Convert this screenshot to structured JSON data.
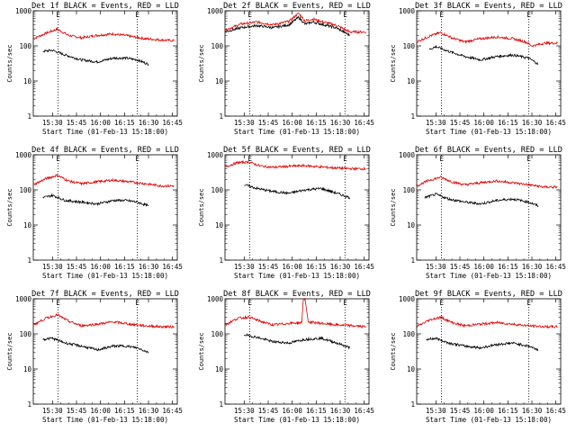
{
  "chart_data": [
    {
      "type": "line",
      "title": "Det 1f BLACK = Events, RED = LLD",
      "xlabel": "Start Time (01-Feb-13 15:18:00)",
      "ylabel": "Counts/sec",
      "xticks": [
        "15:30",
        "15:45",
        "16:00",
        "16:15",
        "16:30",
        "16:45"
      ],
      "yticks": [
        "1",
        "10",
        "100",
        "1000"
      ],
      "ylim": [
        1,
        1000
      ],
      "xlim_minutes": [
        0,
        90
      ],
      "markers": [
        {
          "label": "E",
          "minute": 15.5
        },
        {
          "label": "E",
          "minute": 65
        }
      ],
      "series": [
        {
          "name": "LLD",
          "color": "#dd0000",
          "x": [
            0,
            8,
            15,
            22,
            30,
            40,
            50,
            60,
            70,
            78,
            88
          ],
          "y": [
            160,
            230,
            300,
            200,
            170,
            200,
            220,
            190,
            160,
            150,
            140
          ]
        },
        {
          "name": "Events",
          "color": "#000000",
          "x": [
            6,
            12,
            20,
            30,
            40,
            50,
            58,
            65,
            72
          ],
          "y": [
            70,
            75,
            55,
            40,
            35,
            45,
            45,
            40,
            30
          ]
        }
      ]
    },
    {
      "type": "line",
      "title": "Det 2f BLACK = Events, RED = LLD",
      "xlabel": "Start Time (01-Feb-13 15:18:00)",
      "ylabel": "Counts/sec",
      "xticks": [
        "15:30",
        "15:45",
        "16:00",
        "16:15",
        "16:30",
        "16:45"
      ],
      "yticks": [
        "1",
        "10",
        "100",
        "1000"
      ],
      "ylim": [
        1,
        1000
      ],
      "xlim_minutes": [
        0,
        90
      ],
      "markers": [
        {
          "label": "E",
          "minute": 15.5
        },
        {
          "label": "E",
          "minute": 75
        }
      ],
      "series": [
        {
          "name": "LLD",
          "color": "#dd0000",
          "x": [
            0,
            10,
            20,
            30,
            40,
            46,
            50,
            55,
            60,
            70,
            78,
            88
          ],
          "y": [
            280,
            420,
            480,
            400,
            500,
            850,
            520,
            580,
            500,
            380,
            250,
            250
          ]
        },
        {
          "name": "Events",
          "color": "#000000",
          "x": [
            0,
            10,
            20,
            30,
            40,
            46,
            50,
            55,
            60,
            70,
            78
          ],
          "y": [
            250,
            330,
            380,
            330,
            400,
            650,
            420,
            480,
            420,
            320,
            200
          ]
        }
      ]
    },
    {
      "type": "line",
      "title": "Det 3f BLACK = Events, RED = LLD",
      "xlabel": "Start Time (01-Feb-13 15:18:00)",
      "ylabel": "Counts/sec",
      "xticks": [
        "15:30",
        "15:45",
        "16:00",
        "16:15",
        "16:30",
        "16:45"
      ],
      "yticks": [
        "1",
        "10",
        "100",
        "1000"
      ],
      "ylim": [
        1,
        1000
      ],
      "xlim_minutes": [
        0,
        90
      ],
      "markers": [
        {
          "label": "E",
          "minute": 15.5
        },
        {
          "label": "E",
          "minute": 70
        }
      ],
      "series": [
        {
          "name": "LLD",
          "color": "#dd0000",
          "x": [
            0,
            8,
            15,
            22,
            30,
            40,
            50,
            60,
            68,
            72,
            80,
            88
          ],
          "y": [
            130,
            190,
            240,
            170,
            130,
            160,
            180,
            160,
            130,
            100,
            120,
            120
          ]
        },
        {
          "name": "Events",
          "color": "#000000",
          "x": [
            8,
            12,
            20,
            30,
            40,
            50,
            60,
            70,
            76
          ],
          "y": [
            80,
            95,
            70,
            50,
            40,
            50,
            55,
            45,
            30
          ]
        }
      ]
    },
    {
      "type": "line",
      "title": "Det 4f BLACK = Events, RED = LLD",
      "xlabel": "Start Time (01-Feb-13 15:18:00)",
      "ylabel": "Counts/sec",
      "xticks": [
        "15:30",
        "15:45",
        "16:00",
        "16:15",
        "16:30",
        "16:45"
      ],
      "yticks": [
        "1",
        "10",
        "100",
        "1000"
      ],
      "ylim": [
        1,
        1000
      ],
      "xlim_minutes": [
        0,
        90
      ],
      "markers": [
        {
          "label": "E",
          "minute": 15.5
        },
        {
          "label": "E",
          "minute": 65
        }
      ],
      "series": [
        {
          "name": "LLD",
          "color": "#dd0000",
          "x": [
            0,
            8,
            15,
            22,
            30,
            40,
            50,
            60,
            70,
            80,
            88
          ],
          "y": [
            140,
            210,
            260,
            180,
            150,
            170,
            190,
            170,
            150,
            130,
            130
          ]
        },
        {
          "name": "Events",
          "color": "#000000",
          "x": [
            6,
            12,
            20,
            30,
            40,
            50,
            58,
            65,
            72
          ],
          "y": [
            60,
            70,
            50,
            45,
            40,
            50,
            50,
            45,
            35
          ]
        }
      ]
    },
    {
      "type": "line",
      "title": "Det 5f BLACK = Events, RED = LLD",
      "xlabel": "Start Time (01-Feb-13 15:18:00)",
      "ylabel": "Counts/sec",
      "xticks": [
        "15:30",
        "15:45",
        "16:00",
        "16:15",
        "16:30",
        "16:45"
      ],
      "yticks": [
        "1",
        "10",
        "100",
        "1000"
      ],
      "ylim": [
        1,
        1000
      ],
      "xlim_minutes": [
        0,
        90
      ],
      "markers": [
        {
          "label": "E",
          "minute": 15.5
        },
        {
          "label": "E",
          "minute": 75
        }
      ],
      "series": [
        {
          "name": "LLD",
          "color": "#dd0000",
          "x": [
            0,
            8,
            15,
            22,
            30,
            40,
            50,
            60,
            70,
            80,
            88
          ],
          "y": [
            450,
            600,
            620,
            480,
            440,
            470,
            490,
            450,
            420,
            400,
            400
          ]
        },
        {
          "name": "Events",
          "color": "#000000",
          "x": [
            12,
            20,
            30,
            40,
            50,
            60,
            70,
            78
          ],
          "y": [
            140,
            110,
            90,
            80,
            100,
            110,
            80,
            60
          ]
        }
      ]
    },
    {
      "type": "line",
      "title": "Det 6f BLACK = Events, RED = LLD",
      "xlabel": "Start Time (01-Feb-13 15:18:00)",
      "ylabel": "Counts/sec",
      "xticks": [
        "15:30",
        "15:45",
        "16:00",
        "16:15",
        "16:30",
        "16:45"
      ],
      "yticks": [
        "1",
        "10",
        "100",
        "1000"
      ],
      "ylim": [
        1,
        1000
      ],
      "xlim_minutes": [
        0,
        90
      ],
      "markers": [
        {
          "label": "E",
          "minute": 15.5
        },
        {
          "label": "E",
          "minute": 70
        }
      ],
      "series": [
        {
          "name": "LLD",
          "color": "#dd0000",
          "x": [
            0,
            8,
            15,
            22,
            30,
            40,
            50,
            60,
            70,
            80,
            88
          ],
          "y": [
            130,
            190,
            230,
            170,
            140,
            160,
            180,
            160,
            140,
            120,
            120
          ]
        },
        {
          "name": "Events",
          "color": "#000000",
          "x": [
            5,
            12,
            20,
            30,
            40,
            50,
            60,
            70,
            76
          ],
          "y": [
            60,
            75,
            55,
            45,
            40,
            50,
            55,
            45,
            35
          ]
        }
      ]
    },
    {
      "type": "line",
      "title": "Det 7f BLACK = Events, RED = LLD",
      "xlabel": "Start Time (01-Feb-13 15:18:00)",
      "ylabel": "Counts/sec",
      "xticks": [
        "15:30",
        "15:45",
        "16:00",
        "16:15",
        "16:30",
        "16:45"
      ],
      "yticks": [
        "1",
        "10",
        "100",
        "1000"
      ],
      "ylim": [
        1,
        1000
      ],
      "xlim_minutes": [
        0,
        90
      ],
      "markers": [
        {
          "label": "E",
          "minute": 15.5
        },
        {
          "label": "E",
          "minute": 65
        }
      ],
      "series": [
        {
          "name": "LLD",
          "color": "#dd0000",
          "x": [
            0,
            8,
            15,
            22,
            30,
            40,
            50,
            60,
            70,
            80,
            88
          ],
          "y": [
            180,
            280,
            350,
            230,
            170,
            190,
            220,
            190,
            170,
            160,
            160
          ]
        },
        {
          "name": "Events",
          "color": "#000000",
          "x": [
            6,
            12,
            20,
            30,
            40,
            50,
            58,
            65,
            72
          ],
          "y": [
            70,
            75,
            55,
            45,
            35,
            45,
            45,
            40,
            30
          ]
        }
      ]
    },
    {
      "type": "line",
      "title": "Det 8f BLACK = Events, RED = LLD",
      "xlabel": "Start Time (01-Feb-13 15:18:00)",
      "ylabel": "Counts/sec",
      "xticks": [
        "15:30",
        "15:45",
        "16:00",
        "16:15",
        "16:30",
        "16:45"
      ],
      "yticks": [
        "1",
        "10",
        "100",
        "1000"
      ],
      "ylim": [
        1,
        1000
      ],
      "xlim_minutes": [
        0,
        90
      ],
      "markers": [
        {
          "label": "E",
          "minute": 15.5
        },
        {
          "label": "E",
          "minute": 75
        }
      ],
      "series": [
        {
          "name": "LLD",
          "color": "#dd0000",
          "x": [
            0,
            8,
            15,
            22,
            30,
            40,
            48,
            49,
            50,
            52,
            60,
            70,
            80,
            88
          ],
          "y": [
            180,
            280,
            300,
            230,
            180,
            200,
            210,
            1000,
            1000,
            220,
            200,
            180,
            170,
            160
          ]
        },
        {
          "name": "Events",
          "color": "#000000",
          "x": [
            12,
            20,
            30,
            40,
            50,
            60,
            70,
            78
          ],
          "y": [
            95,
            80,
            60,
            55,
            70,
            75,
            55,
            40
          ]
        }
      ]
    },
    {
      "type": "line",
      "title": "Det 9f BLACK = Events, RED = LLD",
      "xlabel": "Start Time (01-Feb-13 15:18:00)",
      "ylabel": "Counts/sec",
      "xticks": [
        "15:30",
        "15:45",
        "16:00",
        "16:15",
        "16:30",
        "16:45"
      ],
      "yticks": [
        "1",
        "10",
        "100",
        "1000"
      ],
      "ylim": [
        1,
        1000
      ],
      "xlim_minutes": [
        0,
        90
      ],
      "markers": [
        {
          "label": "E",
          "minute": 15.5
        },
        {
          "label": "E",
          "minute": 70
        }
      ],
      "series": [
        {
          "name": "LLD",
          "color": "#dd0000",
          "x": [
            0,
            8,
            15,
            22,
            30,
            40,
            50,
            60,
            70,
            80,
            88
          ],
          "y": [
            160,
            250,
            300,
            210,
            170,
            190,
            210,
            190,
            170,
            160,
            160
          ]
        },
        {
          "name": "Events",
          "color": "#000000",
          "x": [
            6,
            12,
            20,
            30,
            40,
            50,
            60,
            70,
            76
          ],
          "y": [
            70,
            75,
            55,
            45,
            40,
            50,
            55,
            45,
            35
          ]
        }
      ]
    }
  ]
}
